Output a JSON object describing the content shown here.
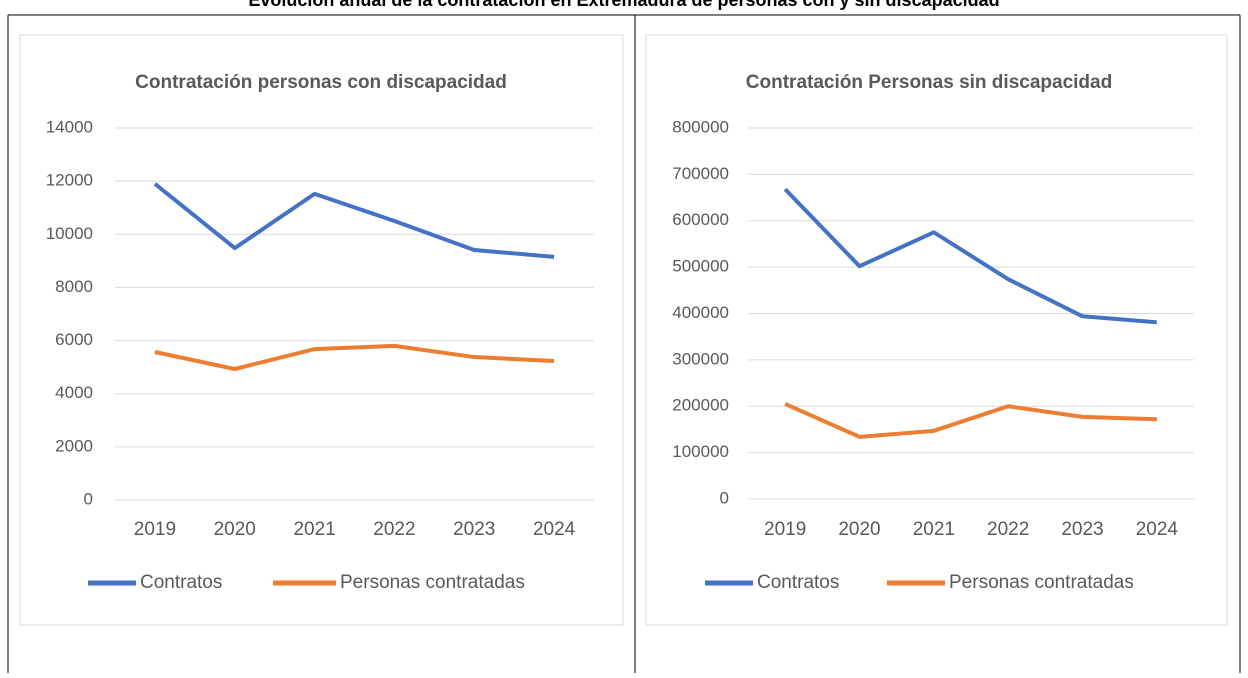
{
  "title": "Evolución anual de la contratación en Extremadura de personas con y sin discapacidad",
  "chart_data": [
    {
      "type": "line",
      "title": "Contratación personas con discapacidad",
      "categories": [
        "2019",
        "2020",
        "2021",
        "2022",
        "2023",
        "2024"
      ],
      "series": [
        {
          "name": "Contratos",
          "color": "#4472c4",
          "values": [
            11900,
            9480,
            11520,
            10500,
            9410,
            9150
          ]
        },
        {
          "name": "Personas contratadas",
          "color": "#ed7d31",
          "values": [
            5570,
            4930,
            5680,
            5800,
            5380,
            5230
          ]
        }
      ],
      "ylim": [
        0,
        14000
      ],
      "yticks": [
        0,
        2000,
        4000,
        6000,
        8000,
        10000,
        12000,
        14000
      ],
      "grid": true,
      "legend": "bottom"
    },
    {
      "type": "line",
      "title": "Contratación Personas sin discapacidad",
      "categories": [
        "2019",
        "2020",
        "2021",
        "2022",
        "2023",
        "2024"
      ],
      "series": [
        {
          "name": "Contratos",
          "color": "#4472c4",
          "values": [
            668000,
            502000,
            575000,
            474000,
            394000,
            381000
          ]
        },
        {
          "name": "Personas contratadas",
          "color": "#ed7d31",
          "values": [
            205000,
            134000,
            147000,
            200000,
            177000,
            172000
          ]
        }
      ],
      "ylim": [
        0,
        800000
      ],
      "yticks": [
        0,
        100000,
        200000,
        300000,
        400000,
        500000,
        600000,
        700000,
        800000
      ],
      "grid": true,
      "legend": "bottom"
    }
  ]
}
